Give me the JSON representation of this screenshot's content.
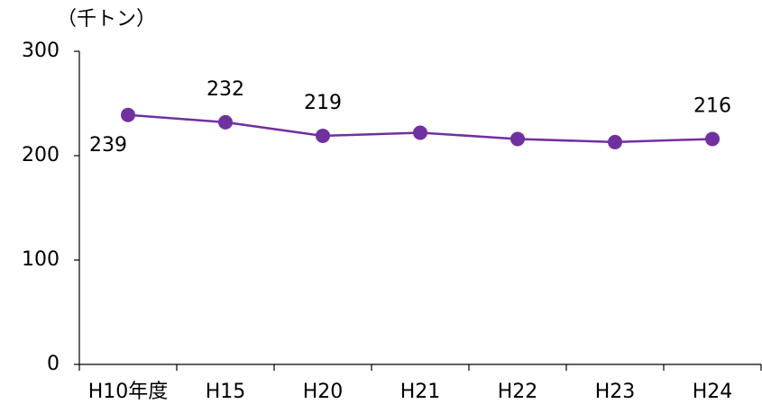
{
  "chart_data": {
    "type": "line",
    "y_unit": "（千トン）",
    "categories": [
      "H10年度",
      "H15",
      "H20",
      "H21",
      "H22",
      "H23",
      "H24"
    ],
    "series": [
      {
        "name": "",
        "color": "#7030a0",
        "values": [
          239,
          232,
          219,
          222,
          216,
          213,
          216
        ],
        "value_labels": [
          "239",
          "232",
          "219",
          null,
          null,
          null,
          "216"
        ]
      }
    ],
    "ylim": [
      0,
      300
    ],
    "yticks": [
      0,
      100,
      200,
      300
    ],
    "grid": false
  }
}
